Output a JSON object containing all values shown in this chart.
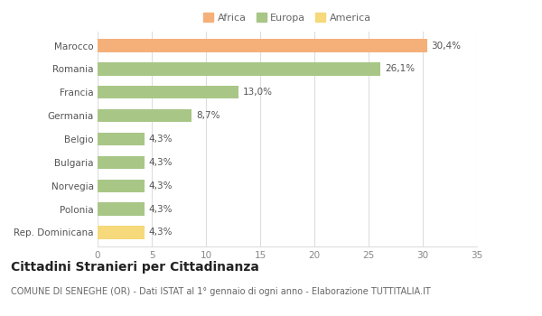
{
  "categories": [
    "Marocco",
    "Romania",
    "Francia",
    "Germania",
    "Belgio",
    "Bulgaria",
    "Norvegia",
    "Polonia",
    "Rep. Dominicana"
  ],
  "values": [
    30.4,
    26.1,
    13.0,
    8.7,
    4.3,
    4.3,
    4.3,
    4.3,
    4.3
  ],
  "labels": [
    "30,4%",
    "26,1%",
    "13,0%",
    "8,7%",
    "4,3%",
    "4,3%",
    "4,3%",
    "4,3%",
    "4,3%"
  ],
  "colors": [
    "#F5B07A",
    "#A8C686",
    "#A8C686",
    "#A8C686",
    "#A8C686",
    "#A8C686",
    "#A8C686",
    "#A8C686",
    "#F5D97A"
  ],
  "legend": [
    {
      "label": "Africa",
      "color": "#F5B07A"
    },
    {
      "label": "Europa",
      "color": "#A8C686"
    },
    {
      "label": "America",
      "color": "#F5D97A"
    }
  ],
  "xlim": [
    0,
    35
  ],
  "xticks": [
    0,
    5,
    10,
    15,
    20,
    25,
    30,
    35
  ],
  "title": "Cittadini Stranieri per Cittadinanza",
  "subtitle": "COMUNE DI SENEGHE (OR) - Dati ISTAT al 1° gennaio di ogni anno - Elaborazione TUTTITALIA.IT",
  "background_color": "#ffffff",
  "bar_height": 0.55,
  "grid_color": "#dddddd",
  "label_fontsize": 7.5,
  "ytick_fontsize": 7.5,
  "xtick_fontsize": 7.5,
  "title_fontsize": 10,
  "subtitle_fontsize": 7,
  "legend_fontsize": 8
}
